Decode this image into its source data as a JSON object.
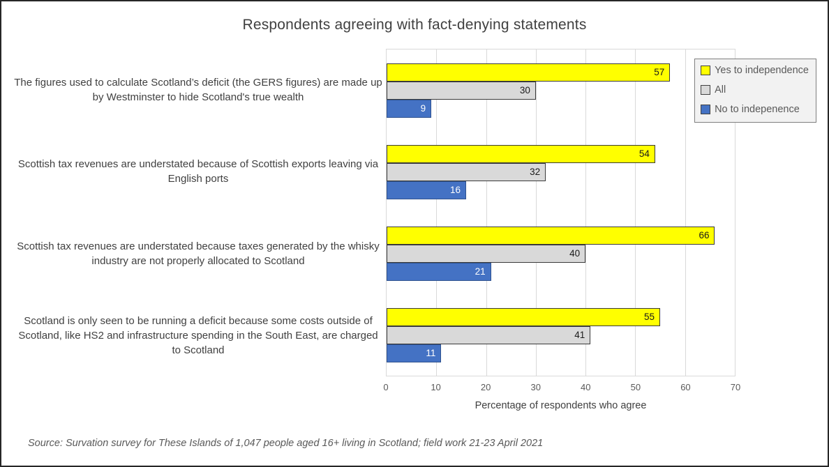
{
  "chart_data": {
    "type": "bar",
    "orientation": "horizontal",
    "title": "Respondents agreeing with fact-denying statements",
    "xlabel": "Percentage of respondents who agree",
    "xlim": [
      0,
      70
    ],
    "ticks": [
      0,
      10,
      20,
      30,
      40,
      50,
      60,
      70
    ],
    "grid": true,
    "legend_position": "top-right",
    "categories": [
      "The figures used to calculate Scotland’s deficit (the GERS figures) are made up by Westminster to hide Scotland's true wealth",
      "Scottish tax revenues are understated because of Scottish exports leaving via English ports",
      "Scottish tax revenues are understated because taxes generated by the whisky industry are not properly allocated to Scotland",
      "Scotland is only seen to be running a deficit because some costs outside of Scotland, like HS2 and infrastructure spending in the South East, are charged to Scotland"
    ],
    "series": [
      {
        "name": "Yes to independence",
        "color": "#ffff00",
        "border": "#3a3a3a",
        "label_color": "#1a1a1a",
        "values": [
          57,
          54,
          66,
          55
        ]
      },
      {
        "name": "All",
        "color": "#d9d9d9",
        "border": "#3a3a3a",
        "label_color": "#1a1a1a",
        "values": [
          30,
          32,
          40,
          41
        ]
      },
      {
        "name": "No to indepenence",
        "color": "#4472c4",
        "border": "#2f528f",
        "label_color": "#ffffff",
        "values": [
          9,
          16,
          21,
          11
        ]
      }
    ]
  },
  "source_note": "Source: Survation survey for These Islands of 1,047 people aged 16+ living in Scotland; field work 21-23 April 2021"
}
